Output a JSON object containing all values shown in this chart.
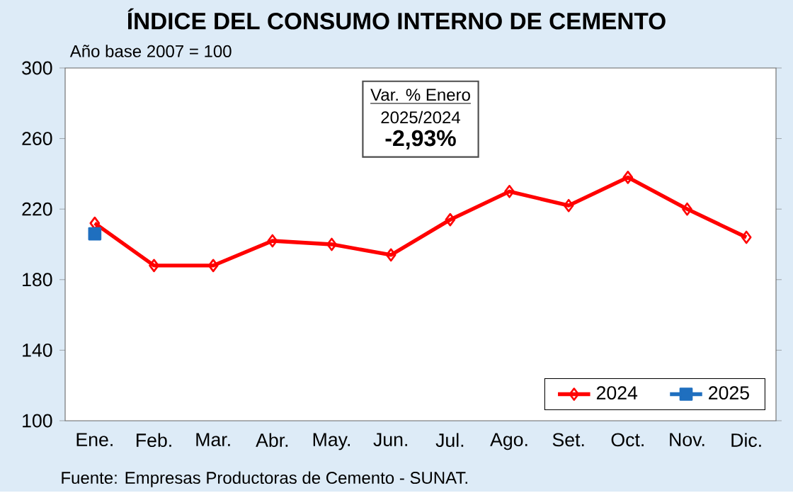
{
  "chart_data": {
    "type": "line",
    "title": "ÍNDICE DEL CONSUMO INTERNO DE CEMENTO",
    "subtitle": "Año base  2007  =  100",
    "categories": [
      "Ene.",
      "Feb.",
      "Mar.",
      "Abr.",
      "May.",
      "Jun.",
      "Jul.",
      "Ago.",
      "Set.",
      "Oct.",
      "Nov.",
      "Dic."
    ],
    "series": [
      {
        "name": "2024",
        "color": "#ff0000",
        "marker": "diamond",
        "values": [
          212,
          188,
          188,
          202,
          200,
          194,
          214,
          230,
          222,
          238,
          220,
          204
        ]
      },
      {
        "name": "2025",
        "color": "#1f6fbf",
        "marker": "square",
        "values": [
          206,
          null,
          null,
          null,
          null,
          null,
          null,
          null,
          null,
          null,
          null,
          null
        ]
      }
    ],
    "ylim": [
      100,
      300
    ],
    "yticks": [
      100,
      140,
      180,
      220,
      260,
      300
    ],
    "grid": false,
    "legend": "bottom right",
    "annotations": [
      "Var. % Enero",
      "2025/2024",
      "-2,93%",
      "Fuente: Empresas Productoras de Cemento - SUNAT."
    ]
  }
}
